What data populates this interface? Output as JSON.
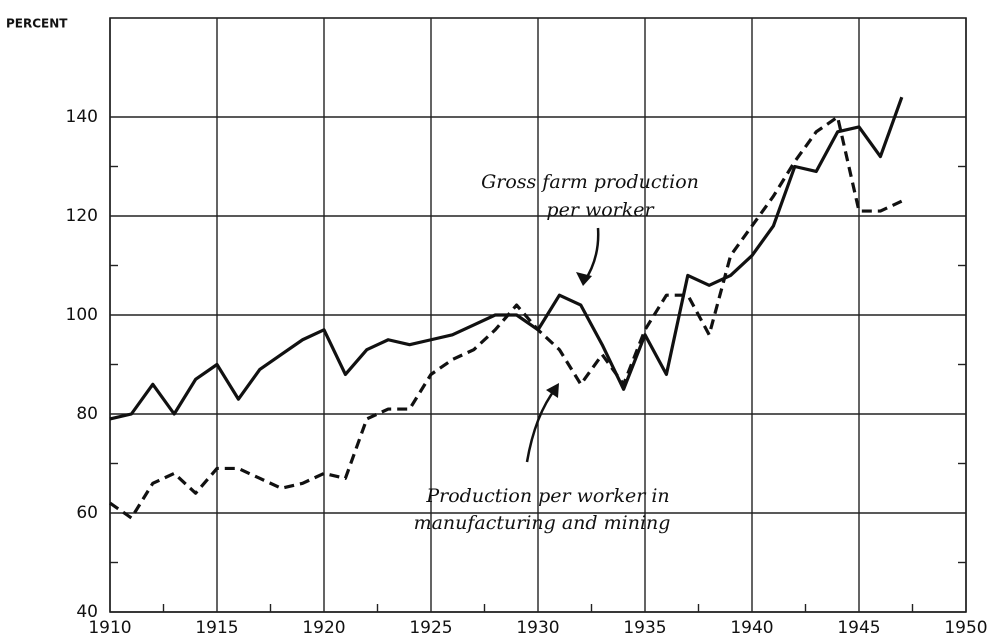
{
  "chart_data": {
    "type": "line",
    "y_label": "PERCENT",
    "annotations": [
      {
        "lines": [
          "Gross farm production",
          "per worker"
        ]
      },
      {
        "lines": [
          "Production per worker in",
          "manufacturing and mining"
        ]
      }
    ],
    "x": [
      1910,
      1911,
      1912,
      1913,
      1914,
      1915,
      1916,
      1917,
      1918,
      1919,
      1920,
      1921,
      1922,
      1923,
      1924,
      1925,
      1926,
      1927,
      1928,
      1929,
      1930,
      1931,
      1932,
      1933,
      1934,
      1935,
      1936,
      1937,
      1938,
      1939,
      1940,
      1941,
      1942,
      1943,
      1944,
      1945,
      1946,
      1947
    ],
    "series": [
      {
        "color": "#111111",
        "dash": false,
        "values": [
          79,
          80,
          86,
          80,
          87,
          90,
          83,
          89,
          92,
          95,
          97,
          88,
          93,
          95,
          94,
          95,
          96,
          98,
          100,
          100,
          97,
          104,
          102,
          94,
          85,
          96,
          88,
          108,
          106,
          108,
          112,
          118,
          130,
          129,
          137,
          138,
          132,
          144
        ]
      },
      {
        "color": "#111111",
        "dash": true,
        "values": [
          62,
          59,
          66,
          68,
          64,
          69,
          69,
          67,
          65,
          66,
          68,
          67,
          79,
          81,
          81,
          88,
          91,
          93,
          97,
          102,
          97,
          93,
          86,
          92,
          86,
          97,
          104,
          104,
          96,
          112,
          118,
          124,
          131,
          137,
          140,
          121,
          121,
          123
        ]
      }
    ],
    "xlim": [
      1910,
      1950
    ],
    "xticks": [
      1910,
      1915,
      1920,
      1925,
      1930,
      1935,
      1940,
      1945,
      1950
    ],
    "ylim": [
      40,
      160
    ],
    "yticks": [
      40,
      60,
      80,
      100,
      120,
      140
    ],
    "grid": true
  }
}
